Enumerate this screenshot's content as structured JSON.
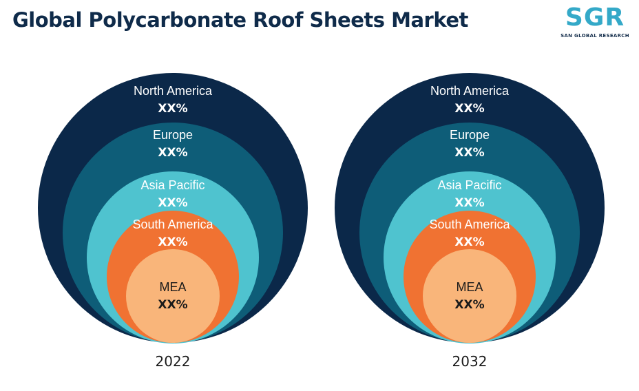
{
  "title": "Global Polycarbonate Roof Sheets Market",
  "logo": {
    "text": "SGR",
    "subtitle": "SAN GLOBAL RESEARCH"
  },
  "chart_data": {
    "type": "nested-circles",
    "title": "Global Polycarbonate Roof Sheets Market",
    "charts": [
      {
        "year": "2022",
        "segments": [
          {
            "name": "North America",
            "value": "XX%",
            "color": "#0b2849",
            "text_color": "#ffffff"
          },
          {
            "name": "Europe",
            "value": "XX%",
            "color": "#0e5d78",
            "text_color": "#ffffff"
          },
          {
            "name": "Asia Pacific",
            "value": "XX%",
            "color": "#4fc3cf",
            "text_color": "#ffffff"
          },
          {
            "name": "South America",
            "value": "XX%",
            "color": "#f07232",
            "text_color": "#ffffff"
          },
          {
            "name": "MEA",
            "value": "XX%",
            "color": "#f9b57a",
            "text_color": "#1a1a1a"
          }
        ]
      },
      {
        "year": "2032",
        "segments": [
          {
            "name": "North America",
            "value": "XX%",
            "color": "#0b2849",
            "text_color": "#ffffff"
          },
          {
            "name": "Europe",
            "value": "XX%",
            "color": "#0e5d78",
            "text_color": "#ffffff"
          },
          {
            "name": "Asia Pacific",
            "value": "XX%",
            "color": "#4fc3cf",
            "text_color": "#ffffff"
          },
          {
            "name": "South America",
            "value": "XX%",
            "color": "#f07232",
            "text_color": "#ffffff"
          },
          {
            "name": "MEA",
            "value": "XX%",
            "color": "#f9b57a",
            "text_color": "#1a1a1a"
          }
        ]
      }
    ]
  }
}
